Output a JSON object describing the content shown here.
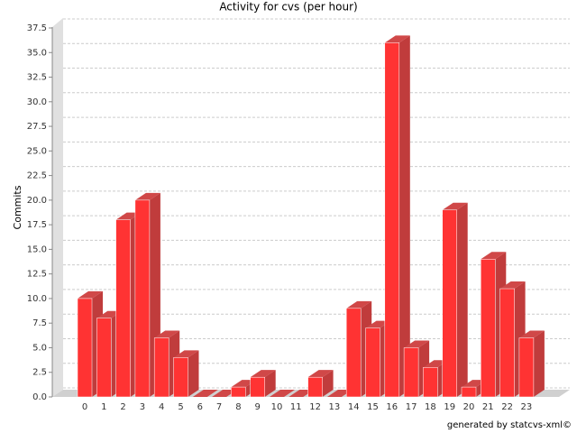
{
  "chart_data": {
    "type": "bar3d",
    "title": "Activity for cvs (per hour)",
    "y_label": "Commits",
    "footer": "generated by statcvs-xml©",
    "categories": [
      "0",
      "1",
      "2",
      "3",
      "4",
      "5",
      "6",
      "7",
      "8",
      "9",
      "10",
      "11",
      "12",
      "13",
      "14",
      "15",
      "16",
      "17",
      "18",
      "19",
      "20",
      "21",
      "22",
      "23"
    ],
    "values": [
      10,
      8,
      18,
      20,
      6,
      4,
      0,
      0,
      1,
      2,
      0,
      0,
      2,
      0,
      9,
      7,
      36,
      5,
      3,
      19,
      1,
      14,
      11,
      6
    ],
    "color": "#ff3333",
    "ylim": [
      0,
      37.5
    ],
    "yticks": [
      {
        "value": 0,
        "label": "0.0"
      },
      2.5,
      {
        "value": 5,
        "label": "5.0"
      },
      7.5,
      {
        "value": 10,
        "label": "10.0"
      },
      12.5,
      {
        "value": 15,
        "label": "15.0"
      },
      17.5,
      {
        "value": 20,
        "label": "20.0"
      },
      22.5,
      {
        "value": 25,
        "label": "25.0"
      },
      27.5,
      {
        "value": 30,
        "label": "30.0"
      },
      32.5,
      {
        "value": 35,
        "label": "35.0"
      },
      37.5
    ],
    "grid": true
  }
}
